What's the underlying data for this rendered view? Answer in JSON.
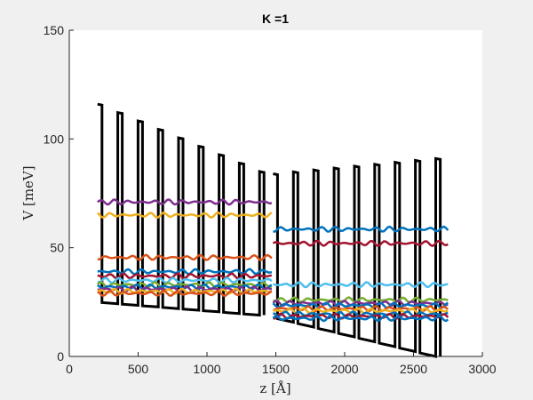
{
  "chart_data": {
    "type": "line",
    "title": "K =1",
    "xlabel": "z [Å]",
    "ylabel": "V [meV]",
    "xlim": [
      0,
      3000
    ],
    "ylim": [
      0,
      150
    ],
    "x_ticks": [
      "0",
      "500",
      "1000",
      "1500",
      "2000",
      "2500",
      "3000"
    ],
    "y_ticks": [
      "0",
      "50",
      "100",
      "150"
    ],
    "grid": false,
    "legend": "none",
    "potential": {
      "color": "#000000",
      "segments": [
        {
          "x": [
            205,
            1470
          ],
          "barrier_top": [
            116,
            85
          ],
          "well_bottom": [
            25,
            19
          ],
          "barriers": 9
        },
        {
          "x": [
            1480,
            2750
          ],
          "barrier_top": [
            84,
            91
          ],
          "well_bottom": [
            18,
            0
          ],
          "barriers": 9
        }
      ]
    },
    "series": [
      {
        "color": "#7e2f8e",
        "x": [
          205,
          1470
        ],
        "y": 71
      },
      {
        "color": "#edb120",
        "x": [
          205,
          1470
        ],
        "y": 65
      },
      {
        "color": "#d95319",
        "x": [
          205,
          1470
        ],
        "y": 45.5
      },
      {
        "color": "#0072bd",
        "x": [
          205,
          1470
        ],
        "y": 39
      },
      {
        "color": "#a2142f",
        "x": [
          205,
          1470
        ],
        "y": 37
      },
      {
        "color": "#4dbeee",
        "x": [
          205,
          1470
        ],
        "y": 35
      },
      {
        "color": "#77ac30",
        "x": [
          205,
          1470
        ],
        "y": 33
      },
      {
        "color": "#0072bd",
        "x": [
          205,
          1470
        ],
        "y": 32
      },
      {
        "color": "#7e2f8e",
        "x": [
          205,
          1470
        ],
        "y": 31
      },
      {
        "color": "#edb120",
        "x": [
          205,
          1470
        ],
        "y": 30
      },
      {
        "color": "#d95319",
        "x": [
          205,
          1470
        ],
        "y": 29
      },
      {
        "color": "#0072bd",
        "x": [
          1480,
          2750
        ],
        "y": 58.5
      },
      {
        "color": "#a2142f",
        "x": [
          1480,
          2750
        ],
        "y": 52
      },
      {
        "color": "#4dbeee",
        "x": [
          1480,
          2750
        ],
        "y": 33
      },
      {
        "color": "#77ac30",
        "x": [
          1480,
          2750
        ],
        "y": 26
      },
      {
        "color": "#7e2f8e",
        "x": [
          1480,
          2750
        ],
        "y": 24.5
      },
      {
        "color": "#0072bd",
        "x": [
          1480,
          2750
        ],
        "y": 23.5
      },
      {
        "color": "#d95319",
        "x": [
          1480,
          2750
        ],
        "y": 22
      },
      {
        "color": "#edb120",
        "x": [
          1480,
          2750
        ],
        "y": 21
      },
      {
        "color": "#0072bd",
        "x": [
          1480,
          2750
        ],
        "y": 19.5
      },
      {
        "color": "#a2142f",
        "x": [
          1480,
          2750
        ],
        "y": 18.5
      },
      {
        "color": "#0072bd",
        "x": [
          1480,
          2750
        ],
        "y": 17.5
      }
    ]
  }
}
